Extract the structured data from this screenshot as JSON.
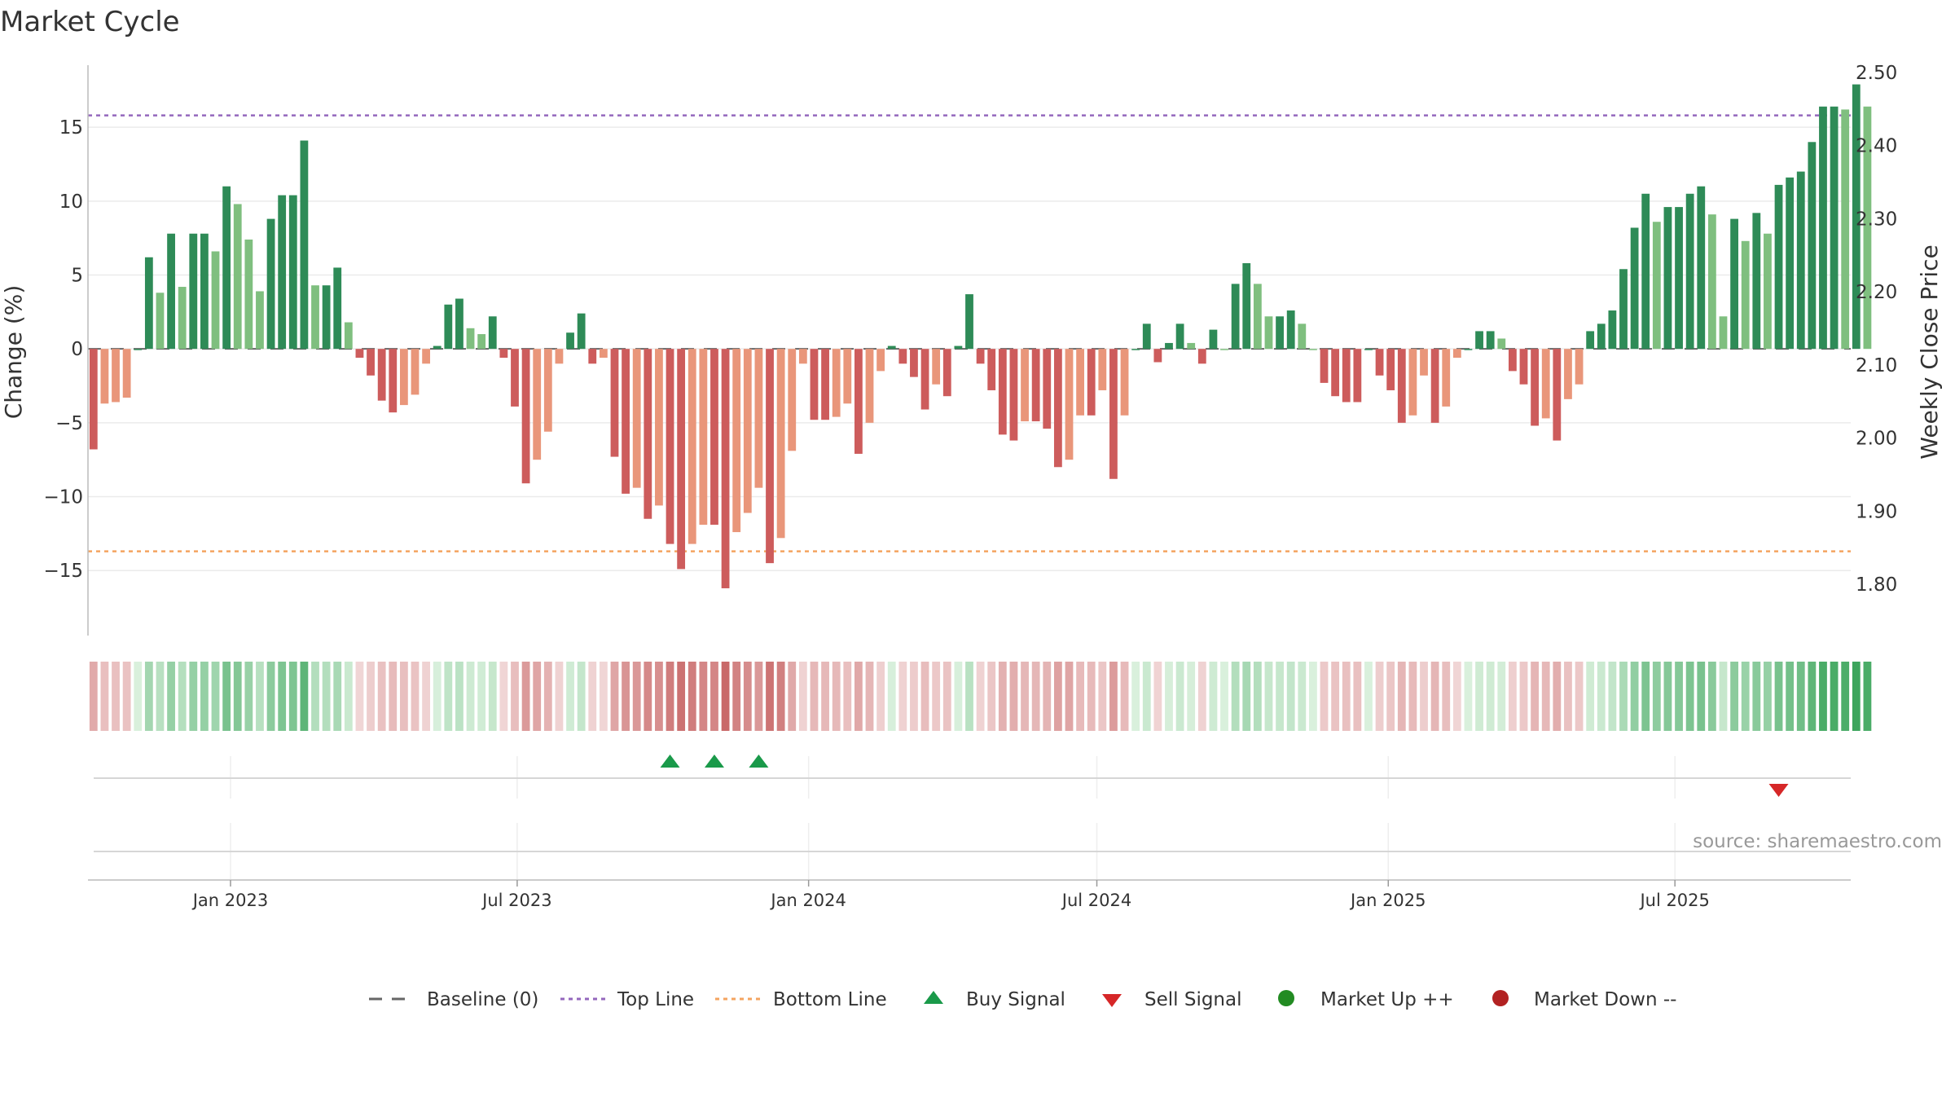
{
  "chart_data": {
    "type": "bar",
    "title": "Market Cycle",
    "ylabel_left": "Change (%)",
    "ylabel_right": "Weekly Close Price",
    "ylim_left": [
      -19.4,
      19.2
    ],
    "ylim_right": [
      1.73,
      2.51
    ],
    "left_ticks": [
      15,
      10,
      5,
      0,
      -5,
      -10,
      -15
    ],
    "left_tick_labels": [
      "15",
      "10",
      "5",
      "0",
      "−5",
      "−10",
      "−15"
    ],
    "right_ticks": [
      2.5,
      2.4,
      2.3,
      2.2,
      2.1,
      2.0,
      1.9,
      1.8
    ],
    "right_tick_labels": [
      "2.50",
      "2.40",
      "2.30",
      "2.20",
      "2.10",
      "2.00",
      "1.90",
      "1.80"
    ],
    "date_ticks": [
      {
        "label": "Jan 2023",
        "date": "2023-01-01"
      },
      {
        "label": "Jul 2023",
        "date": "2023-07-01"
      },
      {
        "label": "Jan 2024",
        "date": "2024-01-01"
      },
      {
        "label": "Jul 2024",
        "date": "2024-07-01"
      },
      {
        "label": "Jan 2025",
        "date": "2025-01-01"
      },
      {
        "label": "Jul 2025",
        "date": "2025-07-01"
      }
    ],
    "x_range": [
      "2022-10-03",
      "2025-10-20"
    ],
    "week_start": "2022-10-03",
    "top_line": 15.8,
    "bottom_line": -13.7,
    "baseline": 0,
    "values": [
      -6.8,
      -3.7,
      -3.6,
      -3.3,
      0,
      6.2,
      3.8,
      7.8,
      4.2,
      7.8,
      7.8,
      6.6,
      11.0,
      9.8,
      7.4,
      3.9,
      8.8,
      10.4,
      10.4,
      14.1,
      4.3,
      4.3,
      5.5,
      1.8,
      -0.6,
      -1.8,
      -3.5,
      -4.3,
      -3.8,
      -3.1,
      -1.0,
      0.2,
      3.0,
      3.4,
      1.4,
      1.0,
      2.2,
      -0.6,
      -3.9,
      -9.1,
      -7.5,
      -5.6,
      -1.0,
      1.1,
      2.4,
      -1.0,
      -0.6,
      -7.3,
      -9.8,
      -9.4,
      -11.5,
      -10.6,
      -13.2,
      -14.9,
      -13.2,
      -11.9,
      -11.9,
      -16.2,
      -12.4,
      -11.1,
      -9.4,
      -14.5,
      -12.8,
      -6.9,
      -1.0,
      -4.8,
      -4.8,
      -4.6,
      -3.7,
      -7.1,
      -5.0,
      -1.5,
      0.2,
      -1.0,
      -1.9,
      -4.1,
      -2.4,
      -3.2,
      0.2,
      3.7,
      -1.0,
      -2.8,
      -5.8,
      -6.2,
      -4.9,
      -4.9,
      -5.4,
      -8.0,
      -7.5,
      -4.5,
      -4.5,
      -2.8,
      -8.8,
      -4.5,
      0,
      1.7,
      -0.9,
      0.4,
      1.7,
      0.4,
      -1.0,
      1.3,
      0,
      4.4,
      5.8,
      4.4,
      2.2,
      2.2,
      2.6,
      1.7,
      0,
      -2.3,
      -3.2,
      -3.6,
      -3.6,
      0,
      -1.8,
      -2.8,
      -5.0,
      -4.5,
      -1.8,
      -5.0,
      -3.9,
      -0.6,
      0,
      1.2,
      1.2,
      0.7,
      -1.5,
      -2.4,
      -5.2,
      -4.7,
      -6.2,
      -3.4,
      -2.4,
      1.2,
      1.7,
      2.6,
      5.4,
      8.2,
      10.5,
      8.6,
      9.6,
      9.6,
      10.5,
      11.0,
      9.1,
      2.2,
      8.8,
      7.3,
      9.2,
      7.8,
      11.1,
      11.6,
      12.0,
      14.0,
      16.4,
      16.4,
      16.2,
      17.9,
      16.4
    ],
    "signals": [
      {
        "type": "buy",
        "week": 52
      },
      {
        "type": "buy",
        "week": 56
      },
      {
        "type": "buy",
        "week": 60
      },
      {
        "type": "sell",
        "week": 152
      }
    ],
    "legend": [
      {
        "key": "baseline",
        "label": "Baseline (0)"
      },
      {
        "key": "top",
        "label": "Top Line"
      },
      {
        "key": "bottom",
        "label": "Bottom Line"
      },
      {
        "key": "buy",
        "label": "Buy Signal"
      },
      {
        "key": "sell",
        "label": "Sell Signal"
      },
      {
        "key": "up",
        "label": "Market Up ++"
      },
      {
        "key": "down",
        "label": "Market Down --"
      }
    ],
    "legend_placement": "bottom",
    "grid": true,
    "source": "source: sharemaestro.com",
    "colors": {
      "up_strong": "#2e8b57",
      "up_weak": "#7fbf7f",
      "down_strong": "#cd5c5c",
      "down_weak": "#e9967a",
      "top_line": "#9467bd",
      "bottom_line": "#f4a460",
      "baseline": "#666666",
      "buy": "#1a9a4a",
      "sell": "#d62728",
      "market_up": "#228b22",
      "market_down": "#b22222"
    }
  }
}
